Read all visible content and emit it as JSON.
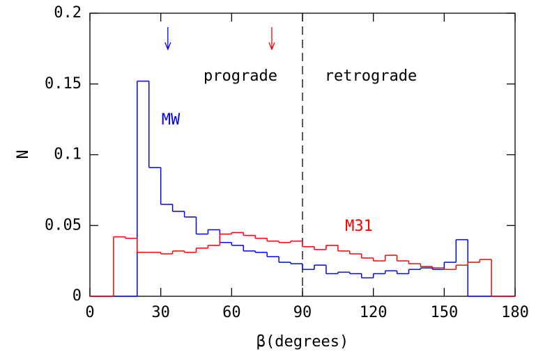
{
  "chart_data": {
    "type": "histogram",
    "xlabel": "β(degrees)",
    "ylabel": "N",
    "bins": [
      0,
      5,
      10,
      15,
      20,
      25,
      30,
      35,
      40,
      45,
      50,
      55,
      60,
      65,
      70,
      75,
      80,
      85,
      90,
      95,
      100,
      105,
      110,
      115,
      120,
      125,
      130,
      135,
      140,
      145,
      150,
      155,
      160,
      165,
      170,
      175,
      180
    ],
    "series": [
      {
        "name": "MW",
        "color": "#0000ff",
        "values": [
          0,
          0,
          0,
          0,
          0.152,
          0.091,
          0.065,
          0.06,
          0.056,
          0.044,
          0.047,
          0.038,
          0.036,
          0.032,
          0.031,
          0.028,
          0.024,
          0.023,
          0.019,
          0.022,
          0.016,
          0.017,
          0.016,
          0.013,
          0.016,
          0.018,
          0.016,
          0.019,
          0.02,
          0.019,
          0.024,
          0.04,
          0,
          0,
          0,
          0
        ]
      },
      {
        "name": "M31",
        "color": "#ff0000",
        "values": [
          0,
          0,
          0.042,
          0.041,
          0.031,
          0.031,
          0.03,
          0.032,
          0.031,
          0.034,
          0.036,
          0.044,
          0.045,
          0.043,
          0.041,
          0.039,
          0.038,
          0.039,
          0.035,
          0.033,
          0.036,
          0.032,
          0.03,
          0.027,
          0.025,
          0.029,
          0.025,
          0.023,
          0.021,
          0.02,
          0.019,
          0.022,
          0.024,
          0.026,
          0,
          0
        ]
      }
    ],
    "arrows": [
      {
        "x": 33,
        "color": "#0000ff"
      },
      {
        "x": 77,
        "color": "#ff0000"
      }
    ],
    "vline": 90,
    "region_labels": [
      "prograde",
      "retrograde"
    ],
    "xlim": [
      0,
      180
    ],
    "xticks": [
      0,
      30,
      60,
      90,
      120,
      150,
      180
    ],
    "ylim": [
      0,
      0.2
    ],
    "yticks": [
      0,
      0.05,
      0.1,
      0.15,
      0.2
    ]
  }
}
